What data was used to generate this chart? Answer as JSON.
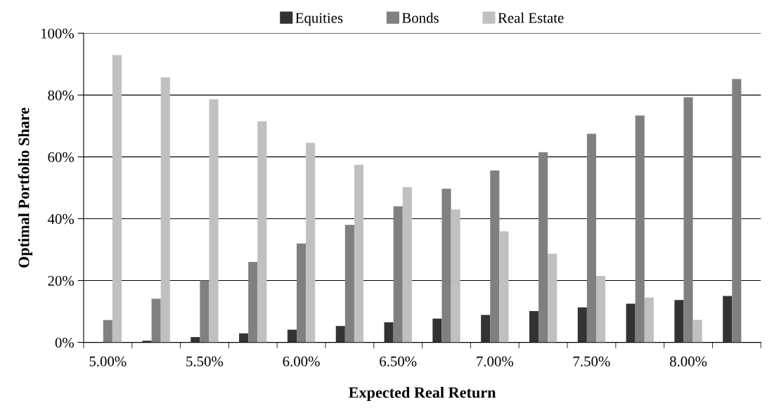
{
  "chart_data": {
    "type": "bar",
    "xlabel": "Expected Real Return",
    "ylabel": "Optimal Portfolio Share",
    "categories": [
      "5.00%",
      null,
      "5.50%",
      null,
      "6.00%",
      null,
      "6.50%",
      null,
      "7.00%",
      null,
      "7.50%",
      null,
      "8.00%",
      null
    ],
    "series": [
      {
        "name": "Equities",
        "color": "#333333",
        "values": [
          0,
          0.5,
          1.7,
          2.9,
          4.1,
          5.3,
          6.5,
          7.7,
          8.9,
          10.1,
          11.3,
          12.5,
          13.7,
          15
        ]
      },
      {
        "name": "Bonds",
        "color": "#808080",
        "values": [
          7.2,
          14.1,
          20,
          26,
          32,
          38,
          44,
          49.7,
          55.6,
          61.5,
          67.5,
          73.4,
          79.3,
          85.2
        ]
      },
      {
        "name": "Real Estate",
        "color": "#c0c0c0",
        "values": [
          92.9,
          85.7,
          78.6,
          71.5,
          64.5,
          57.4,
          50.2,
          43,
          35.9,
          28.7,
          21.5,
          14.5,
          7.3,
          0
        ]
      }
    ],
    "ylim": [
      0,
      100
    ],
    "yticks": [
      {
        "value": 0,
        "label": "0%"
      },
      {
        "value": 20,
        "label": "20%"
      },
      {
        "value": 40,
        "label": "40%"
      },
      {
        "value": 60,
        "label": "60%"
      },
      {
        "value": 80,
        "label": "80%"
      },
      {
        "value": 100,
        "label": "100%"
      }
    ],
    "grid": "y",
    "legend": "top"
  }
}
